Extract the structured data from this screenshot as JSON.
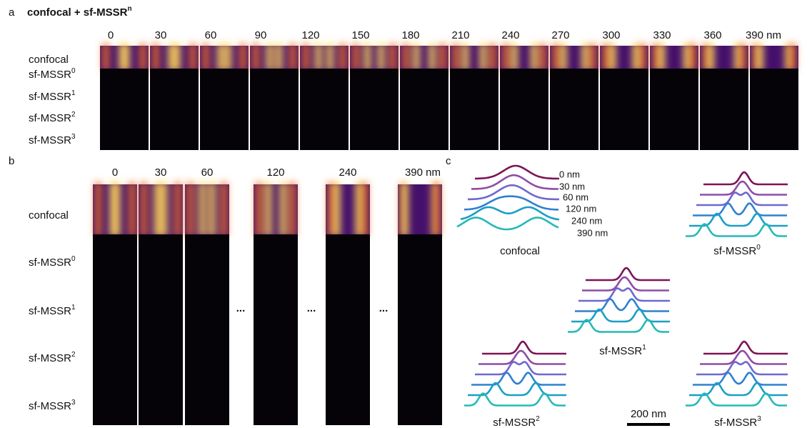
{
  "panel_a": {
    "label": "a",
    "title": {
      "text": "confocal + sf-MSSR",
      "sup": "n"
    },
    "columns": [
      "0",
      "30",
      "60",
      "90",
      "120",
      "150",
      "180",
      "210",
      "240",
      "270",
      "300",
      "330",
      "360",
      "390 nm"
    ],
    "rows": [
      {
        "text": "confocal"
      },
      {
        "text": "sf-MSSR",
        "sup": "0"
      },
      {
        "text": "sf-MSSR",
        "sup": "1"
      },
      {
        "text": "sf-MSSR",
        "sup": "2"
      },
      {
        "text": "sf-MSSR",
        "sup": "3"
      }
    ]
  },
  "panel_b": {
    "label": "b",
    "columns": [
      "0",
      "30",
      "60",
      "120",
      "240",
      "390 nm"
    ],
    "rows": [
      {
        "text": "confocal"
      },
      {
        "text": "sf-MSSR",
        "sup": "0"
      },
      {
        "text": "sf-MSSR",
        "sup": "1"
      },
      {
        "text": "sf-MSSR",
        "sup": "2"
      },
      {
        "text": "sf-MSSR",
        "sup": "3"
      }
    ],
    "ellipses": [
      "...",
      "...",
      "..."
    ]
  },
  "panel_c": {
    "label": "c",
    "distances": [
      "0 nm",
      "30 nm",
      "60 nm",
      "120 nm",
      "240 nm",
      "390 nm"
    ],
    "groups": [
      {
        "text": "confocal"
      },
      {
        "text": "sf-MSSR",
        "sup": "0"
      },
      {
        "text": "sf-MSSR",
        "sup": "1"
      },
      {
        "text": "sf-MSSR",
        "sup": "2"
      },
      {
        "text": "sf-MSSR",
        "sup": "3"
      }
    ],
    "scale_bar": "200 nm"
  }
}
